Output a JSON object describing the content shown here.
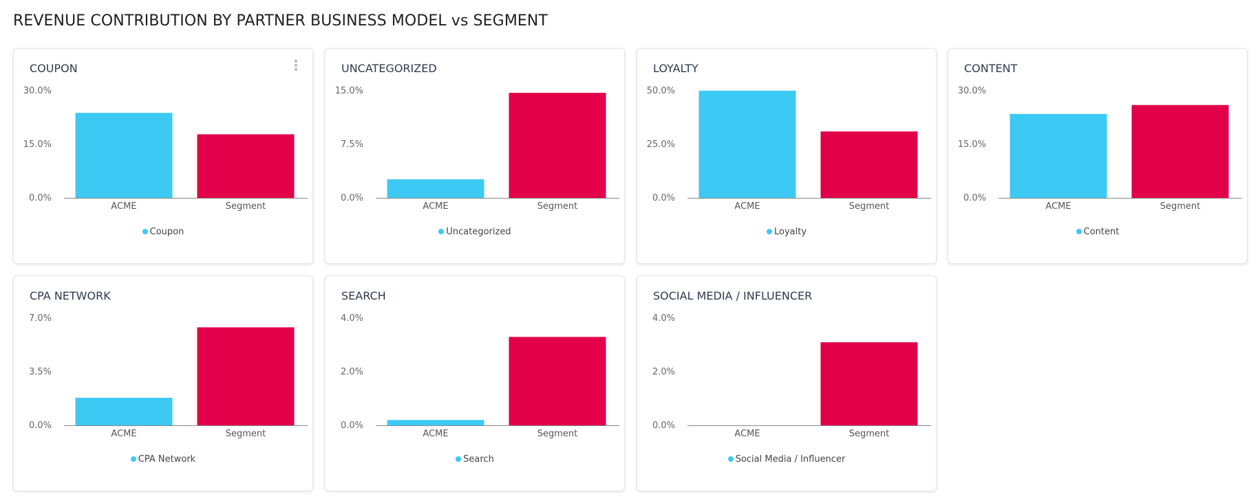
{
  "page": {
    "title": "REVENUE CONTRIBUTION BY PARTNER BUSINESS MODEL vs SEGMENT"
  },
  "colors": {
    "acme": "#3ccaf4",
    "segment": "#e3004a",
    "axis": "#888888"
  },
  "chart_data": [
    {
      "type": "bar",
      "title": "COUPON",
      "categories": [
        "ACME",
        "Segment"
      ],
      "values": [
        23.8,
        17.8
      ],
      "ylim": [
        0,
        30
      ],
      "yticks": [
        "0.0%",
        "15.0%",
        "30.0%"
      ],
      "legend": "Coupon",
      "has_menu": true
    },
    {
      "type": "bar",
      "title": "UNCATEGORIZED",
      "categories": [
        "ACME",
        "Segment"
      ],
      "values": [
        2.6,
        14.7
      ],
      "ylim": [
        0,
        15
      ],
      "yticks": [
        "0.0%",
        "7.5%",
        "15.0%"
      ],
      "legend": "Uncategorized",
      "has_menu": false
    },
    {
      "type": "bar",
      "title": "LOYALTY",
      "categories": [
        "ACME",
        "Segment"
      ],
      "values": [
        50.0,
        31.0
      ],
      "ylim": [
        0,
        50
      ],
      "yticks": [
        "0.0%",
        "25.0%",
        "50.0%"
      ],
      "legend": "Loyalty",
      "has_menu": false
    },
    {
      "type": "bar",
      "title": "CONTENT",
      "categories": [
        "ACME",
        "Segment"
      ],
      "values": [
        23.5,
        26.0
      ],
      "ylim": [
        0,
        30
      ],
      "yticks": [
        "0.0%",
        "15.0%",
        "30.0%"
      ],
      "legend": "Content",
      "has_menu": false
    },
    {
      "type": "bar",
      "title": "CPA NETWORK",
      "categories": [
        "ACME",
        "Segment"
      ],
      "values": [
        1.8,
        6.4
      ],
      "ylim": [
        0,
        7
      ],
      "yticks": [
        "0.0%",
        "3.5%",
        "7.0%"
      ],
      "legend": "CPA Network",
      "has_menu": false
    },
    {
      "type": "bar",
      "title": "SEARCH",
      "categories": [
        "ACME",
        "Segment"
      ],
      "values": [
        0.2,
        3.3
      ],
      "ylim": [
        0,
        4
      ],
      "yticks": [
        "0.0%",
        "2.0%",
        "4.0%"
      ],
      "legend": "Search",
      "has_menu": false
    },
    {
      "type": "bar",
      "title": "SOCIAL MEDIA / INFLUENCER",
      "categories": [
        "ACME",
        "Segment"
      ],
      "values": [
        0,
        3.1
      ],
      "ylim": [
        0,
        4
      ],
      "yticks": [
        "0.0%",
        "2.0%",
        "4.0%"
      ],
      "legend": "Social Media / Influencer",
      "has_menu": false
    }
  ]
}
